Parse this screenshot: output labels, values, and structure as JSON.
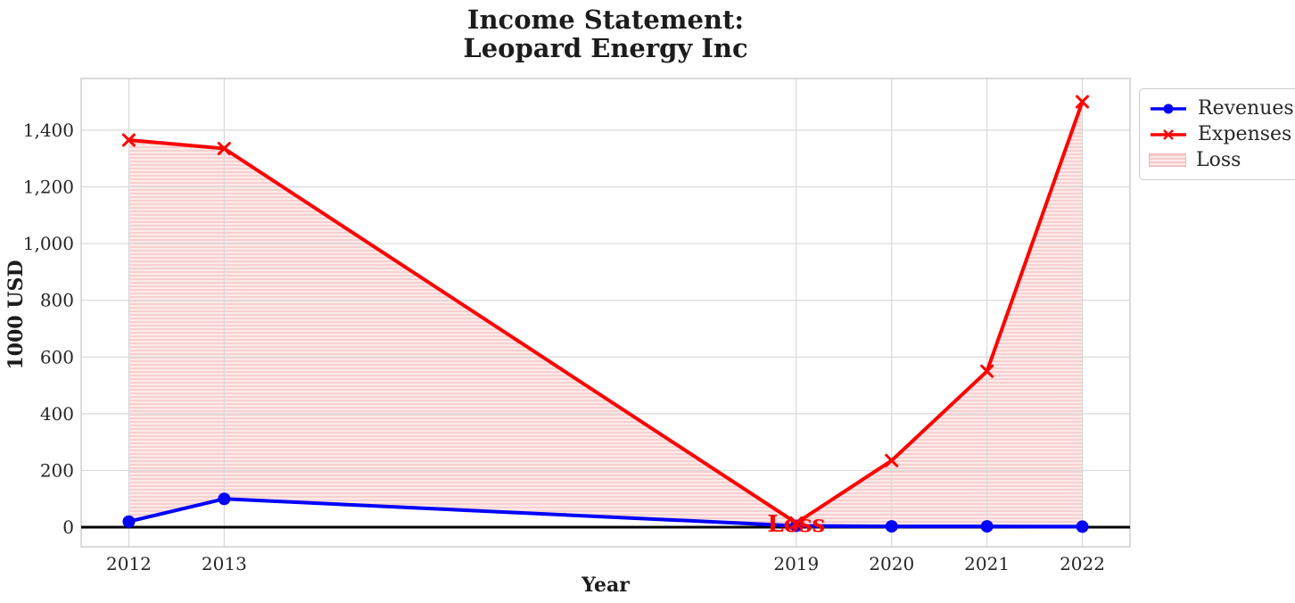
{
  "figure": {
    "title_line1": "Income Statement:",
    "title_line2": "Leopard Energy Inc"
  },
  "axes": {
    "xlabel": "Year",
    "ylabel": "1000 USD",
    "x_tick_labels": [
      "2012",
      "2013",
      "2019",
      "2020",
      "2021",
      "2022"
    ],
    "y_tick_labels": [
      "0",
      "200",
      "400",
      "600",
      "800",
      "1,000",
      "1,200",
      "1,400"
    ]
  },
  "legend": {
    "items": [
      {
        "label": "Revenues",
        "marker": "line-with-circle",
        "color": "#0000ff"
      },
      {
        "label": "Expenses",
        "marker": "line-with-x",
        "color": "#ff0000"
      },
      {
        "label": "Loss",
        "marker": "hatched-patch",
        "color": "#f8caca"
      }
    ]
  },
  "annotation": {
    "text": "Loss",
    "color": "#ff0000"
  },
  "colors": {
    "revenues": "#0000ff",
    "expenses": "#ff0000",
    "loss_fill_dark": "#f8d0d0",
    "loss_fill_light": "#fdeaea",
    "zero_line": "#000000",
    "grid": "#d9d9d9",
    "spine": "#cfcfcf",
    "text": "#262626"
  },
  "chart_data": {
    "type": "line",
    "title": "Income Statement: Leopard Energy Inc",
    "xlabel": "Year",
    "ylabel": "1000 USD",
    "x": [
      2012,
      2013,
      2019,
      2020,
      2021,
      2022
    ],
    "series": [
      {
        "name": "Revenues",
        "color": "#0000ff",
        "marker": "circle",
        "values": [
          20,
          100,
          5,
          3,
          3,
          2
        ]
      },
      {
        "name": "Expenses",
        "color": "#ff0000",
        "marker": "x",
        "values": [
          1365,
          1335,
          15,
          235,
          550,
          1500
        ]
      }
    ],
    "fill_between": {
      "label": "Loss",
      "upper_series": "Expenses",
      "lower_series": "Revenues",
      "style": "horizontal-hatch",
      "color": "#f8d0d0"
    },
    "annotation": {
      "text": "Loss",
      "x": 2019,
      "y": 7
    },
    "x_ticks": [
      2012,
      2013,
      2019,
      2020,
      2021,
      2022
    ],
    "y_ticks": [
      0,
      200,
      400,
      600,
      800,
      1000,
      1200,
      1400
    ],
    "xlim": [
      2011.5,
      2022.5
    ],
    "ylim": [
      -69,
      1582
    ],
    "grid": true,
    "legend_position": "outside-upper-right"
  }
}
